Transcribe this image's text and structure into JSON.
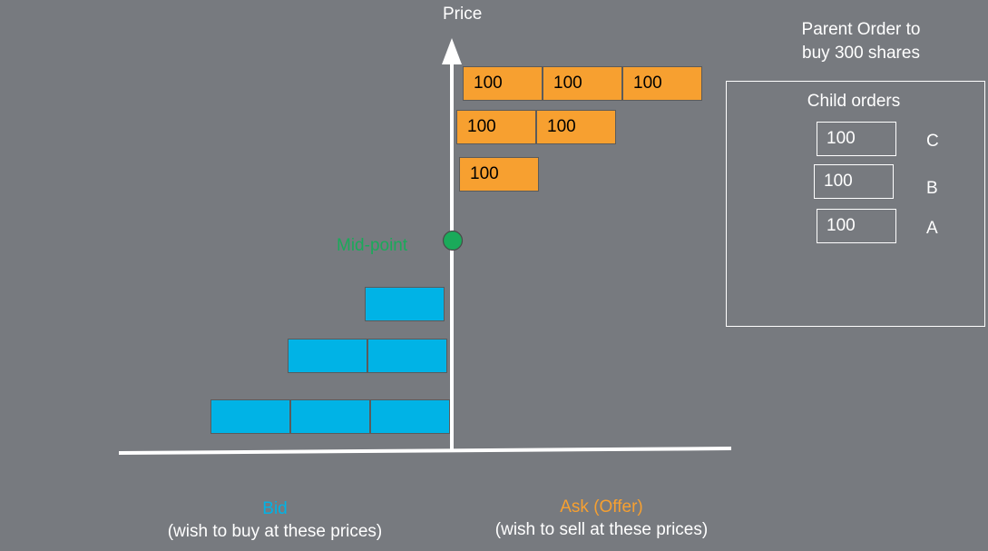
{
  "axis": {
    "price_label": "Price"
  },
  "parent_order": {
    "title_line1": "Parent Order to",
    "title_line2": "buy 300 shares"
  },
  "child_panel": {
    "title": "Child orders",
    "orders": [
      {
        "qty": "100",
        "letter": "C"
      },
      {
        "qty": "100",
        "letter": "B"
      },
      {
        "qty": "100",
        "letter": "A"
      }
    ]
  },
  "ask": {
    "label": "Ask  (Offer)",
    "caption": "(wish to sell at these prices)",
    "color": "#f7a030",
    "rows": [
      [
        "100",
        "100",
        "100"
      ],
      [
        "100",
        "100"
      ],
      [
        "100"
      ]
    ]
  },
  "bid": {
    "label": "Bid",
    "caption": "(wish to buy at these prices)",
    "color": "#00b3e6",
    "row_counts": [
      1,
      2,
      3
    ]
  },
  "midpoint": {
    "label": "Mid-point",
    "color": "#1aaa5a"
  }
}
